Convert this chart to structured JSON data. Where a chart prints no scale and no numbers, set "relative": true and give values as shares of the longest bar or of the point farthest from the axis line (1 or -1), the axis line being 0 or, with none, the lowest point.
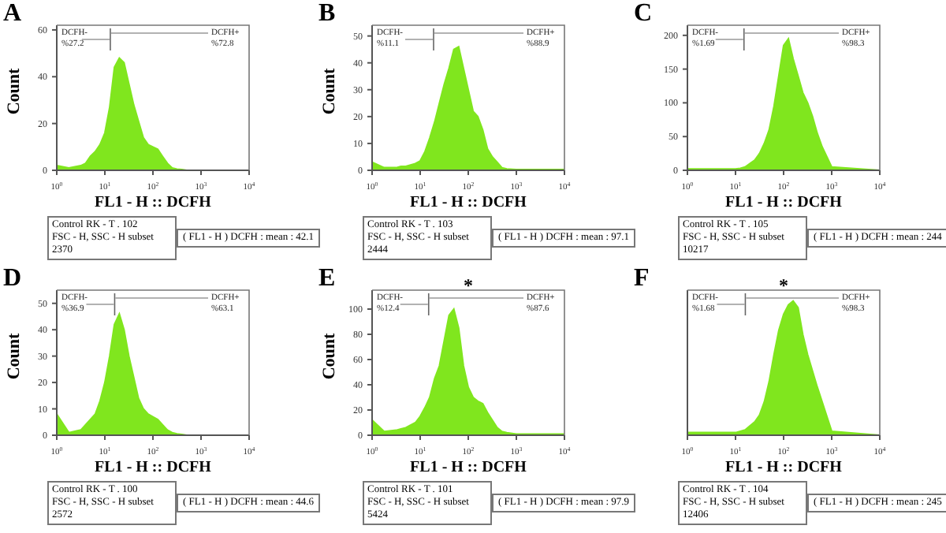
{
  "chart_data": [
    {
      "type": "area",
      "title": "A",
      "xlabel": "FL1 - H :: DCFH",
      "ylabel": "Count",
      "color": "#80e61e",
      "log": "x",
      "xlim": [
        1,
        10000
      ],
      "xticks": [
        {
          "value": 1,
          "label": "10$^{0}$"
        },
        {
          "value": 10,
          "label": "10$^{1}$"
        },
        {
          "value": 100,
          "label": "10$^{2}$"
        },
        {
          "value": 1000,
          "label": "10$^{3}$"
        },
        {
          "value": 10000,
          "label": "10$^{4}$"
        }
      ],
      "ylim": [
        0,
        62
      ],
      "yticks": [
        0,
        20,
        40,
        60
      ],
      "x": [
        1,
        1.78,
        3.16,
        3.98,
        5.01,
        6.31,
        7.94,
        10,
        12.6,
        15.8,
        20,
        25.1,
        31.6,
        39.8,
        50.1,
        63.1,
        79.4,
        100,
        126,
        158,
        200,
        251,
        316,
        398,
        501,
        631,
        1000,
        10000
      ],
      "values": [
        2,
        1,
        2,
        3,
        6,
        8,
        11,
        16,
        27,
        44,
        48,
        46,
        37,
        28,
        21,
        14,
        11,
        10,
        9,
        6,
        3,
        1,
        0.5,
        0.3,
        0,
        0,
        0,
        0
      ],
      "ref_lines": [
        {
          "axis": "x",
          "value": 13
        }
      ],
      "annotations": [
        "DCFH-\n%27.2",
        "DCFH+\n%72.8",
        "Control RK - T . 102\nFSC - H, SSC - H subset\n2370",
        "( FL1 - H ) DCFH : mean : 42.1"
      ]
    },
    {
      "type": "area",
      "title": "B",
      "xlabel": "FL1 - H :: DCFH",
      "ylabel": "Count",
      "color": "#80e61e",
      "log": "x",
      "xlim": [
        1,
        10000
      ],
      "xticks": [
        {
          "value": 1,
          "label": "10$^{0}$"
        },
        {
          "value": 10,
          "label": "10$^{1}$"
        },
        {
          "value": 100,
          "label": "10$^{2}$"
        },
        {
          "value": 1000,
          "label": "10$^{3}$"
        },
        {
          "value": 10000,
          "label": "10$^{4}$"
        }
      ],
      "ylim": [
        0,
        54
      ],
      "yticks": [
        0,
        10,
        20,
        30,
        40,
        50
      ],
      "x": [
        1,
        1.78,
        3.16,
        3.98,
        5.01,
        6.31,
        7.94,
        10,
        12.6,
        15.8,
        20,
        25.1,
        31.6,
        39.8,
        50.1,
        63.1,
        79.4,
        100,
        126,
        158,
        200,
        251,
        316,
        398,
        501,
        631,
        1000,
        10000
      ],
      "values": [
        3,
        1,
        1,
        1.5,
        1.5,
        2,
        2.5,
        3.5,
        7,
        12,
        18,
        25,
        32,
        38,
        45,
        46,
        38,
        30,
        22,
        20,
        15,
        8,
        5,
        3,
        1,
        0.5,
        0.3,
        0.3
      ],
      "ref_lines": [
        {
          "axis": "x",
          "value": 19
        }
      ],
      "annotations": [
        "DCFH-\n%11.1",
        "DCFH+\n%88.9",
        "Control RK - T . 103\nFSC - H, SSC - H subset\n2444",
        "( FL1 - H ) DCFH : mean : 97.1"
      ]
    },
    {
      "type": "area",
      "title": "C",
      "xlabel": "FL1 - H :: DCFH",
      "color": "#80e61e",
      "log": "x",
      "xlim": [
        1,
        10000
      ],
      "xticks": [
        {
          "value": 1,
          "label": "10$^{0}$"
        },
        {
          "value": 10,
          "label": "10$^{1}$"
        },
        {
          "value": 100,
          "label": "10$^{2}$"
        },
        {
          "value": 1000,
          "label": "10$^{3}$"
        },
        {
          "value": 10000,
          "label": "10$^{4}$"
        }
      ],
      "ylim": [
        0,
        215
      ],
      "yticks": [
        0,
        50,
        100,
        150,
        200
      ],
      "x": [
        1,
        1.78,
        3.16,
        3.98,
        5.01,
        6.31,
        7.94,
        10,
        12.6,
        15.8,
        20,
        25.1,
        31.6,
        39.8,
        50.1,
        63.1,
        79.4,
        100,
        126,
        158,
        200,
        251,
        316,
        398,
        501,
        631,
        1000,
        10000
      ],
      "values": [
        2,
        2,
        2,
        2,
        2,
        2,
        2,
        2,
        3,
        5,
        10,
        15,
        25,
        40,
        60,
        95,
        140,
        185,
        195,
        165,
        140,
        115,
        100,
        80,
        55,
        35,
        5,
        0
      ],
      "ref_lines": [
        {
          "axis": "x",
          "value": 15
        }
      ],
      "annotations": [
        "DCFH-\n%1.69",
        "DCFH+\n%98.3",
        "Control RK - T . 105\nFSC - H, SSC - H subset\n10217",
        "( FL1 - H ) DCFH : mean : 244"
      ]
    },
    {
      "type": "area",
      "title": "D",
      "xlabel": "FL1 - H :: DCFH",
      "ylabel": "Count",
      "color": "#80e61e",
      "log": "x",
      "xlim": [
        1,
        10000
      ],
      "xticks": [
        {
          "value": 1,
          "label": "10$^{0}$"
        },
        {
          "value": 10,
          "label": "10$^{1}$"
        },
        {
          "value": 100,
          "label": "10$^{2}$"
        },
        {
          "value": 1000,
          "label": "10$^{3}$"
        },
        {
          "value": 10000,
          "label": "10$^{4}$"
        }
      ],
      "ylim": [
        0,
        55
      ],
      "yticks": [
        0,
        10,
        20,
        30,
        40,
        50
      ],
      "x": [
        1,
        1.78,
        3.16,
        3.98,
        5.01,
        6.31,
        7.94,
        10,
        12.6,
        15.8,
        20,
        25.1,
        31.6,
        39.8,
        50.1,
        63.1,
        79.4,
        100,
        126,
        158,
        200,
        251,
        316,
        398,
        501,
        631,
        1000,
        10000
      ],
      "values": [
        8,
        1,
        2,
        4,
        6,
        8,
        13,
        20,
        30,
        42,
        46,
        40,
        30,
        22,
        14,
        10,
        8,
        7,
        6,
        4,
        2,
        1,
        0.5,
        0.3,
        0,
        0,
        0,
        0
      ],
      "ref_lines": [
        {
          "axis": "x",
          "value": 16
        }
      ],
      "annotations": [
        "DCFH-\n%36.9",
        "DCFH+\n%63.1",
        "Control RK - T . 100\nFSC - H, SSC - H subset\n2572",
        "( FL1 - H ) DCFH : mean : 44.6"
      ]
    },
    {
      "type": "area",
      "title": "E",
      "subtitle": "*",
      "xlabel": "FL1 - H :: DCFH",
      "ylabel": "Count",
      "color": "#80e61e",
      "log": "x",
      "xlim": [
        1,
        10000
      ],
      "xticks": [
        {
          "value": 1,
          "label": "10$^{0}$"
        },
        {
          "value": 10,
          "label": "10$^{1}$"
        },
        {
          "value": 100,
          "label": "10$^{2}$"
        },
        {
          "value": 1000,
          "label": "10$^{3}$"
        },
        {
          "value": 10000,
          "label": "10$^{4}$"
        }
      ],
      "ylim": [
        0,
        115
      ],
      "yticks": [
        0,
        20,
        40,
        60,
        80,
        100
      ],
      "x": [
        1,
        1.78,
        3.16,
        3.98,
        5.01,
        6.31,
        7.94,
        10,
        12.6,
        15.8,
        20,
        25.1,
        31.6,
        39.8,
        50.1,
        63.1,
        79.4,
        100,
        126,
        158,
        200,
        251,
        316,
        398,
        501,
        631,
        1000,
        10000
      ],
      "values": [
        12,
        3,
        4,
        5,
        6,
        8,
        10,
        15,
        22,
        30,
        45,
        55,
        75,
        95,
        100,
        85,
        55,
        38,
        30,
        27,
        25,
        18,
        12,
        6,
        3,
        2,
        1,
        1
      ],
      "ref_lines": [
        {
          "axis": "x",
          "value": 15
        }
      ],
      "annotations": [
        "DCFH-\n%12.4",
        "DCFH+\n%87.6",
        "Control RK - T . 101\nFSC - H, SSC - H subset\n5424",
        "( FL1 - H ) DCFH : mean : 97.9"
      ]
    },
    {
      "type": "area",
      "title": "F",
      "subtitle": "*",
      "xlabel": "FL1 - H :: DCFH",
      "color": "#80e61e",
      "log": "x",
      "relative": true,
      "tick_labels": "x",
      "xlim": [
        1,
        10000
      ],
      "xticks": [
        {
          "value": 1,
          "label": "10$^{0}$"
        },
        {
          "value": 10,
          "label": "10$^{1}$"
        },
        {
          "value": 100,
          "label": "10$^{2}$"
        },
        {
          "value": 1000,
          "label": "10$^{3}$"
        },
        {
          "value": 10000,
          "label": "10$^{4}$"
        }
      ],
      "x": [
        1,
        1.78,
        3.16,
        3.98,
        5.01,
        6.31,
        7.94,
        10,
        12.6,
        15.8,
        20,
        25.1,
        31.6,
        39.8,
        50.1,
        63.1,
        79.4,
        100,
        126,
        158,
        200,
        251,
        316,
        398,
        501,
        631,
        1000,
        10000
      ],
      "values": [
        0.02,
        0.02,
        0.02,
        0.02,
        0.02,
        0.02,
        0.02,
        0.02,
        0.03,
        0.04,
        0.07,
        0.1,
        0.15,
        0.25,
        0.4,
        0.6,
        0.78,
        0.9,
        0.97,
        1,
        0.95,
        0.75,
        0.6,
        0.48,
        0.36,
        0.25,
        0.03,
        0
      ],
      "ref_lines": [
        {
          "axis": "x",
          "value": 16
        }
      ],
      "annotations": [
        "DCFH-\n%1.68",
        "DCFH+\n%98.3",
        "Control RK - T . 104\nFSC - H, SSC - H subset\n12406",
        "( FL1 - H ) DCFH : mean : 245"
      ]
    }
  ]
}
